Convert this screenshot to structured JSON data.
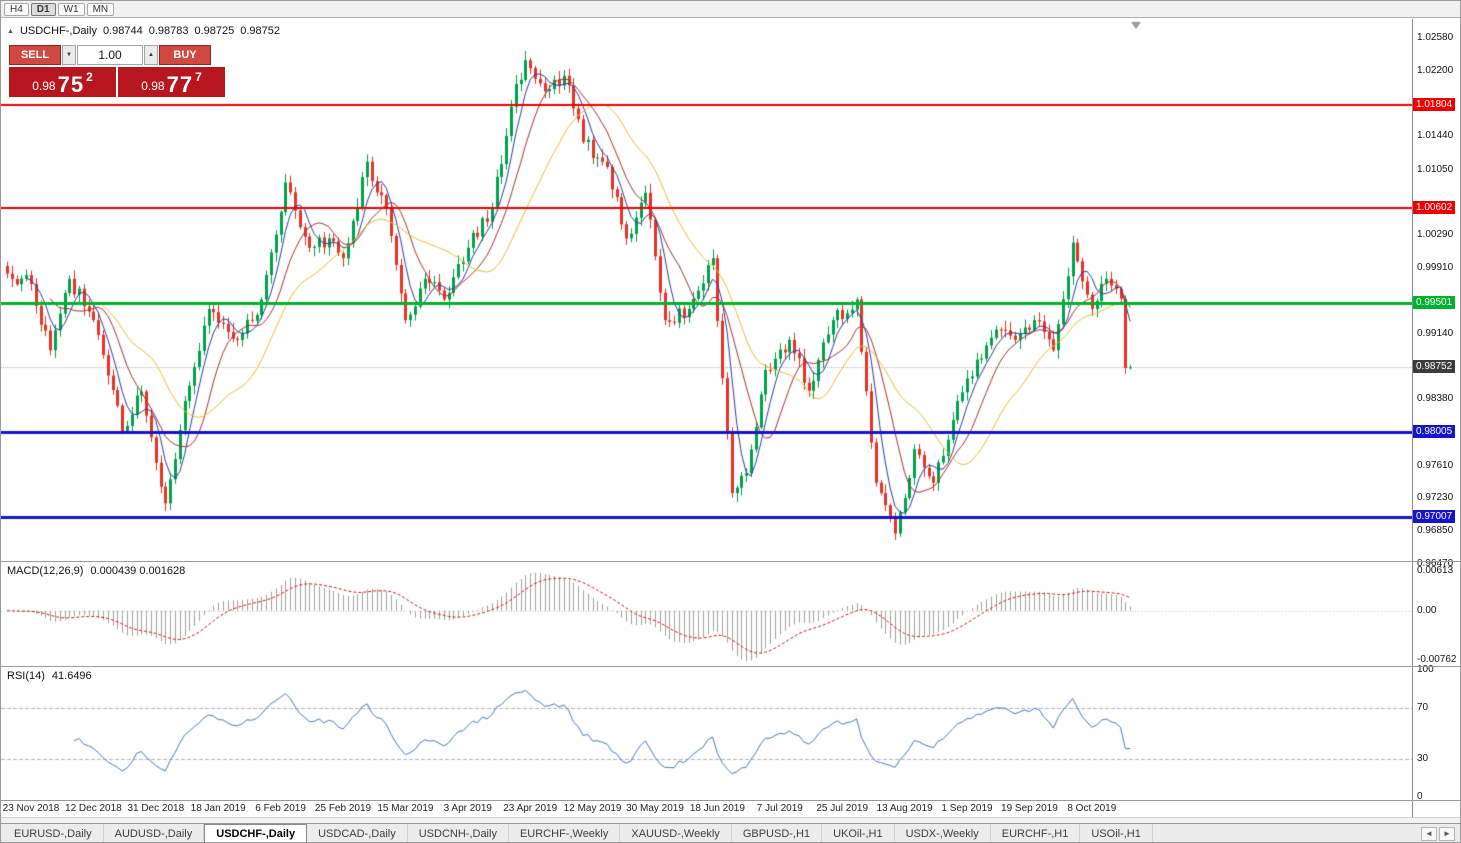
{
  "toolbar": {
    "timeframes": [
      "H4",
      "D1",
      "W1",
      "MN"
    ],
    "active_timeframe": "D1"
  },
  "header": {
    "collapse_icon": "▲",
    "symbol": "USDCHF-,Daily",
    "open": "0.98744",
    "high": "0.98783",
    "low": "0.98725",
    "close": "0.98752"
  },
  "trade_panel": {
    "sell_label": "SELL",
    "buy_label": "BUY",
    "volume": "1.00",
    "volume_down_icon": "▼",
    "volume_up_icon": "▲",
    "sell_price": {
      "prefix": "0.98",
      "big": "75",
      "sup": "2"
    },
    "buy_price": {
      "prefix": "0.98",
      "big": "77",
      "sup": "7"
    },
    "button_color": "#d04a42",
    "price_box_color": "#b8161e"
  },
  "macd_panel": {
    "title": "MACD(12,26,9)",
    "current_values": "0.000439 0.001628"
  },
  "rsi_panel": {
    "title": "RSI(14)",
    "current_value": "41.6496"
  },
  "tab_bar": {
    "tabs": [
      "EURUSD-,Daily",
      "AUDUSD-,Daily",
      "USDCHF-,Daily",
      "USDCAD-,Daily",
      "USDCNH-,Daily",
      "EURCHF-,Weekly",
      "XAUUSD-,Weekly",
      "GBPUSD-,H1",
      "UKOil-,H1",
      "USDX-,Weekly",
      "EURCHF-,H1",
      "USOil-,H1"
    ],
    "active": "USDCHF-,Daily",
    "scroll_left_icon": "◄",
    "scroll_right_icon": "►"
  },
  "chart_data": {
    "type": "candlestick",
    "symbol": "USDCHF",
    "period": "Daily",
    "bar_count": 235,
    "up_color": "#00a04c",
    "down_color": "#e43327",
    "price_range": {
      "top": 1.028,
      "bottom": 0.965
    },
    "noise_seed": 12,
    "close_path_anchors": [
      [
        0,
        0.9984
      ],
      [
        5,
        0.9972
      ],
      [
        9,
        0.9895
      ],
      [
        13,
        0.9978
      ],
      [
        18,
        0.993
      ],
      [
        24,
        0.98
      ],
      [
        28,
        0.9847
      ],
      [
        33,
        0.9717
      ],
      [
        37,
        0.9836
      ],
      [
        42,
        0.9943
      ],
      [
        48,
        0.9907
      ],
      [
        53,
        0.9954
      ],
      [
        58,
        1.009
      ],
      [
        63,
        1.0014
      ],
      [
        67,
        1.0025
      ],
      [
        70,
        1.0002
      ],
      [
        75,
        1.0114
      ],
      [
        79,
        1.006
      ],
      [
        83,
        0.993
      ],
      [
        87,
        0.9978
      ],
      [
        91,
        0.9954
      ],
      [
        96,
        1.0014
      ],
      [
        101,
        1.006
      ],
      [
        105,
        1.0178
      ],
      [
        108,
        1.0232
      ],
      [
        112,
        1.0196
      ],
      [
        116,
        1.0214
      ],
      [
        120,
        1.0137
      ],
      [
        125,
        1.0108
      ],
      [
        129,
        1.0025
      ],
      [
        133,
        1.0078
      ],
      [
        137,
        0.993
      ],
      [
        142,
        0.9943
      ],
      [
        147,
        1.0002
      ],
      [
        151,
        0.9729
      ],
      [
        154,
        0.9752
      ],
      [
        158,
        0.9872
      ],
      [
        163,
        0.9907
      ],
      [
        167,
        0.9848
      ],
      [
        172,
        0.993
      ],
      [
        177,
        0.9954
      ],
      [
        181,
        0.9741
      ],
      [
        185,
        0.9682
      ],
      [
        189,
        0.978
      ],
      [
        193,
        0.9741
      ],
      [
        198,
        0.9836
      ],
      [
        202,
        0.9884
      ],
      [
        206,
        0.9919
      ],
      [
        210,
        0.9907
      ],
      [
        214,
        0.993
      ],
      [
        218,
        0.9895
      ],
      [
        222,
        1.002
      ],
      [
        226,
        0.9943
      ],
      [
        229,
        0.9978
      ],
      [
        232,
        0.9955
      ],
      [
        233,
        0.98744
      ],
      [
        234,
        0.98752
      ]
    ],
    "last_bar": {
      "open": 0.98744,
      "high": 0.98783,
      "low": 0.98725,
      "close": 0.98752
    },
    "moving_averages": [
      {
        "period": 5,
        "color": "#2c3e9e"
      },
      {
        "period": 10,
        "color": "#a83232"
      },
      {
        "period": 21,
        "color": "#e8c231"
      }
    ],
    "horizontal_lines": [
      {
        "price": 1.01804,
        "color": "#f20000",
        "width": 2
      },
      {
        "price": 1.00602,
        "color": "#f20000",
        "width": 2
      },
      {
        "price": 0.99501,
        "color": "#00b32c",
        "width": 3
      },
      {
        "price": 0.98005,
        "color": "#1414cc",
        "width": 3
      },
      {
        "price": 0.97007,
        "color": "#1414cc",
        "width": 3
      }
    ],
    "current_price_line": {
      "price": 0.98752,
      "color": "#b4b4b4"
    },
    "price_ticks": [
      {
        "label": "1.02580",
        "value": 1.0258
      },
      {
        "label": "1.02200",
        "value": 1.022
      },
      {
        "label": "1.01440",
        "value": 1.0144
      },
      {
        "label": "1.01050",
        "value": 1.0105
      },
      {
        "label": "1.00290",
        "value": 1.0029
      },
      {
        "label": "0.99910",
        "value": 0.9991
      },
      {
        "label": "0.99140",
        "value": 0.9914
      },
      {
        "label": "0.98380",
        "value": 0.9838
      },
      {
        "label": "0.97610",
        "value": 0.9761
      },
      {
        "label": "0.97230",
        "value": 0.9723
      },
      {
        "label": "0.96850",
        "value": 0.9685
      },
      {
        "label": "0.96470",
        "value": 0.9647
      }
    ],
    "price_tags": [
      {
        "label": "1.01804",
        "value": 1.01804,
        "bg": "#f20000"
      },
      {
        "label": "1.00602",
        "value": 1.00602,
        "bg": "#f20000"
      },
      {
        "label": "0.99501",
        "value": 0.99501,
        "bg": "#00b32c"
      },
      {
        "label": "0.98752",
        "value": 0.98752,
        "bg": "#3c3c3c"
      },
      {
        "label": "0.98005",
        "value": 0.98005,
        "bg": "#1414cc"
      },
      {
        "label": "0.97007",
        "value": 0.97007,
        "bg": "#1414cc"
      }
    ],
    "macd": {
      "fast": 12,
      "slow": 26,
      "signal": 9,
      "scale_top": 0.0075,
      "scale_bottom": -0.0085,
      "hist_color": "#a0a0a0",
      "signal_color": "#d01818",
      "axis_labels": [
        {
          "label": "0.00613",
          "value": 0.00613
        },
        {
          "label": "0.00",
          "value": 0
        },
        {
          "label": "-0.00762",
          "value": -0.00762
        }
      ]
    },
    "rsi": {
      "period": 14,
      "color": "#4a7ab5",
      "levels": [
        70,
        30
      ],
      "axis_labels": [
        {
          "label": "100",
          "value": 100
        },
        {
          "label": "70",
          "value": 70
        },
        {
          "label": "30",
          "value": 30
        },
        {
          "label": "0",
          "value": 0
        }
      ]
    },
    "date_labels": {
      "first_bar_index": 5,
      "bar_step": 13,
      "labels": [
        "23 Nov 2018",
        "12 Dec 2018",
        "31 Dec 2018",
        "18 Jan 2019",
        "6 Feb 2019",
        "25 Feb 2019",
        "15 Mar 2019",
        "3 Apr 2019",
        "23 Apr 2019",
        "12 May 2019",
        "30 May 2019",
        "18 Jun 2019",
        "7 Jul 2019",
        "25 Jul 2019",
        "13 Aug 2019",
        "1 Sep 2019",
        "19 Sep 2019",
        "8 Oct 2019"
      ]
    }
  }
}
